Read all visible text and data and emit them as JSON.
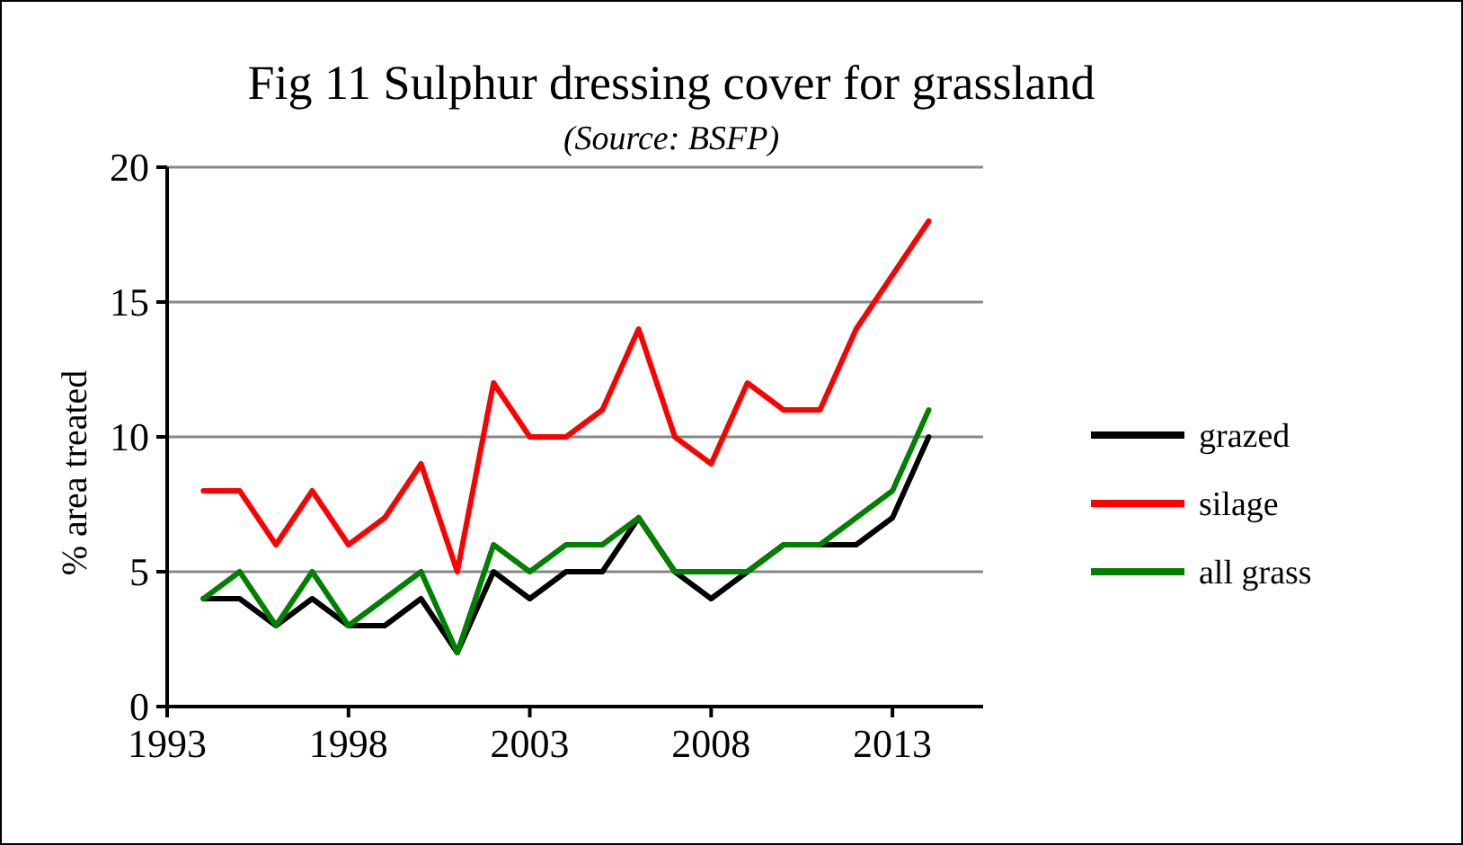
{
  "chart_data": {
    "type": "line",
    "title": "Fig 11  Sulphur dressing cover for grassland",
    "subtitle": "(Source: BSFP)",
    "ylabel": "% area treated",
    "x": [
      1994,
      1995,
      1996,
      1997,
      1998,
      1999,
      2000,
      2001,
      2002,
      2003,
      2004,
      2005,
      2006,
      2007,
      2008,
      2009,
      2010,
      2011,
      2012,
      2013,
      2014
    ],
    "series": [
      {
        "name": "grazed",
        "color": "#000000",
        "values": [
          4,
          4,
          3,
          4,
          3,
          3,
          4,
          2,
          5,
          4,
          5,
          5,
          7,
          5,
          4,
          5,
          6,
          6,
          6,
          7,
          10
        ]
      },
      {
        "name": "silage",
        "color": "#ff0000",
        "values": [
          8,
          8,
          6,
          8,
          6,
          7,
          9,
          5,
          12,
          10,
          10,
          11,
          14,
          10,
          9,
          12,
          11,
          11,
          14,
          16,
          18
        ]
      },
      {
        "name": "all grass",
        "color": "#008000",
        "values": [
          4,
          5,
          3,
          5,
          3,
          4,
          5,
          2,
          6,
          5,
          6,
          6,
          7,
          5,
          5,
          5,
          6,
          6,
          7,
          8,
          11
        ]
      }
    ],
    "xlim": [
      1993,
      2015.5
    ],
    "xticks": [
      1993,
      1998,
      2003,
      2008,
      2013
    ],
    "ylim": [
      0,
      20
    ],
    "yticks": [
      0,
      5,
      10,
      15,
      20
    ],
    "grid": "y",
    "legend": "right",
    "marker": "none",
    "line_style": "solid"
  }
}
